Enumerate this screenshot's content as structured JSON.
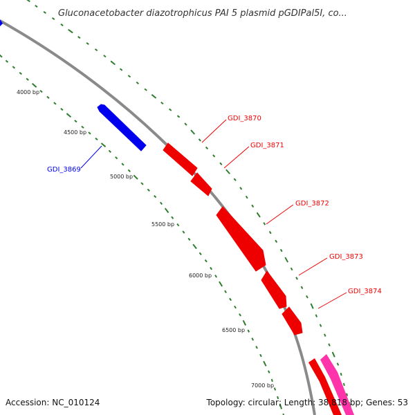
{
  "title": "Gluconacetobacter diazotrophicus PAI 5 plasmid pGDIPal5I, co...",
  "footer": {
    "accession": "Accession: NC_010124",
    "summary": "Topology: circular; Length: 38,818 bp; Genes: 53"
  },
  "map": {
    "backbone_color": "#8a8a8a",
    "tick_color": "#2e7d2e",
    "tick_labels": [
      {
        "bp": 4000,
        "text": "4000 bp"
      },
      {
        "bp": 4500,
        "text": "4500 bp"
      },
      {
        "bp": 5000,
        "text": "5000 bp"
      },
      {
        "bp": 5500,
        "text": "5500 bp"
      },
      {
        "bp": 6000,
        "text": "6000 bp"
      },
      {
        "bp": 6500,
        "text": "6500 bp"
      },
      {
        "bp": 7000,
        "text": "7000 bp"
      }
    ],
    "genes": [
      {
        "id": "GDI_3869",
        "label": "GDI_3869",
        "strand": "reverse",
        "color": "#0000ee"
      },
      {
        "id": "GDI_3870",
        "label": "GDI_3870",
        "strand": "forward",
        "color": "#ee0000"
      },
      {
        "id": "GDI_3871",
        "label": "GDI_3871",
        "strand": "forward",
        "color": "#ee0000"
      },
      {
        "id": "GDI_3872",
        "label": "GDI_3872",
        "strand": "forward",
        "color": "#ee0000"
      },
      {
        "id": "GDI_3873",
        "label": "GDI_3873",
        "strand": "forward",
        "color": "#ee0000"
      },
      {
        "id": "GDI_3874",
        "label": "GDI_3874",
        "strand": "forward",
        "color": "#ee0000"
      }
    ],
    "extra_features": [
      {
        "id": "feature-red-7000",
        "color": "#ee0000"
      },
      {
        "id": "feature-pink-7000",
        "color": "#ff33aa"
      }
    ]
  }
}
